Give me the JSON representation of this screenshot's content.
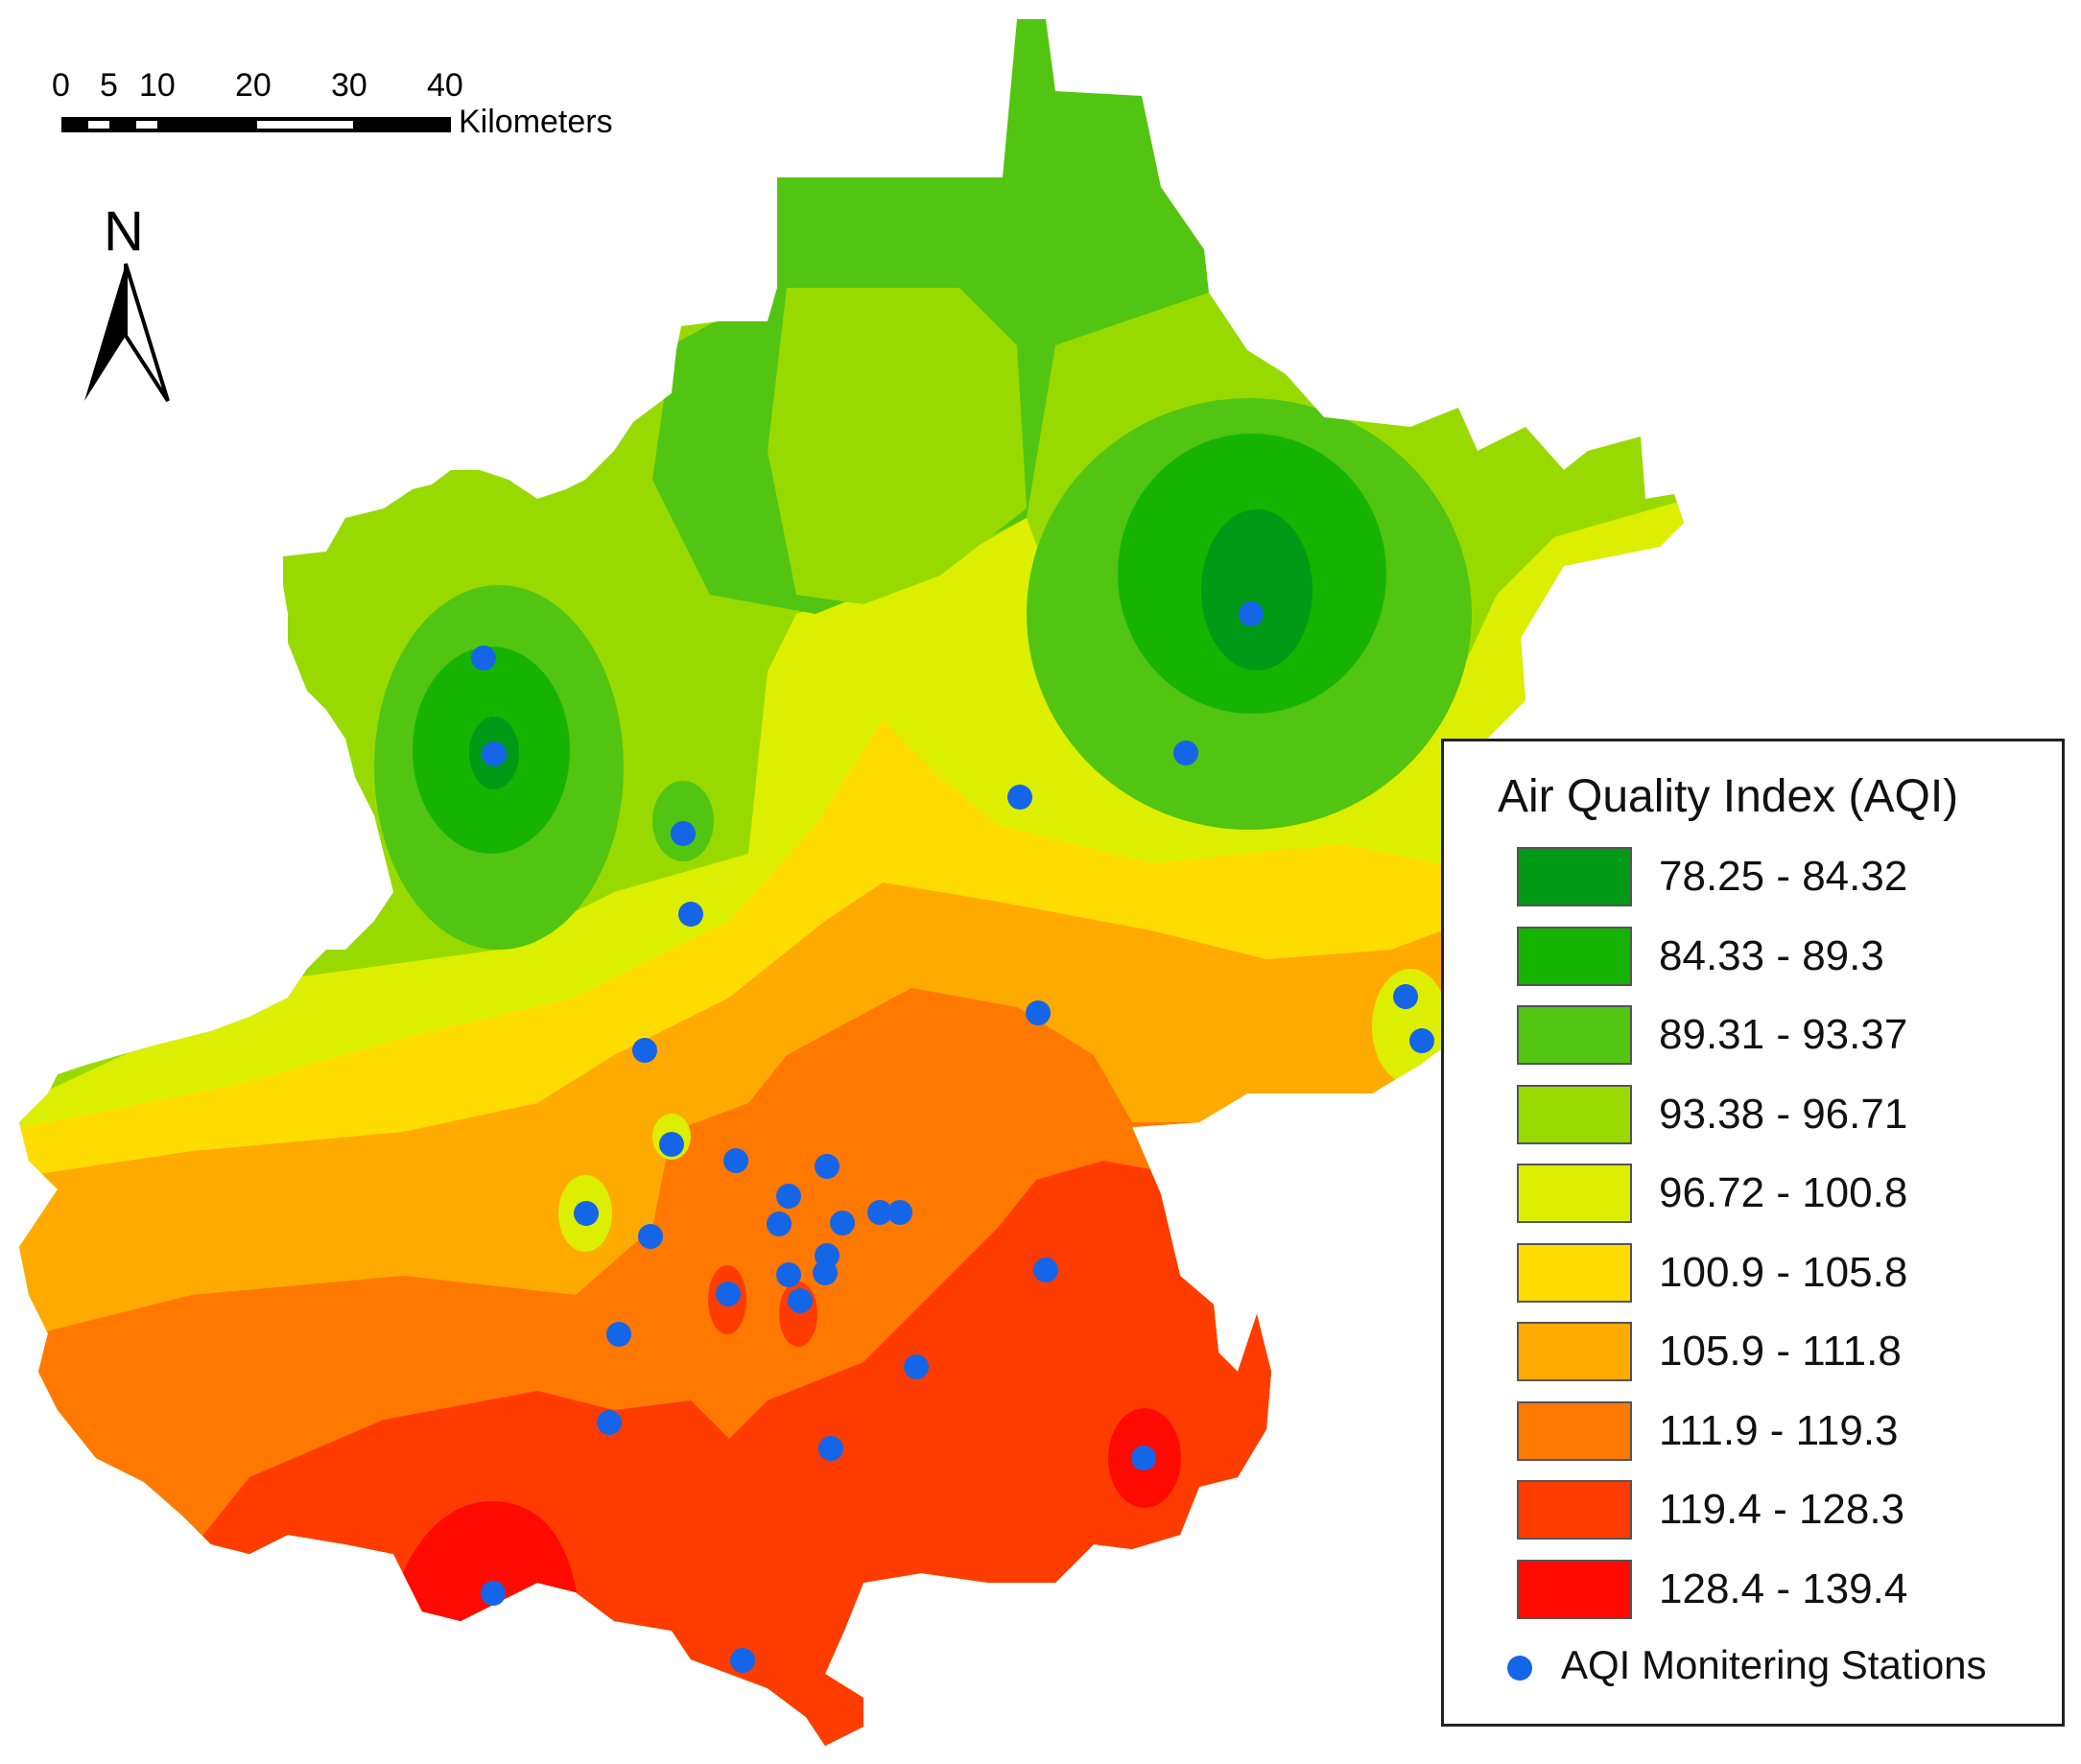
{
  "scale_bar": {
    "ticks": [
      "0",
      "5",
      "10",
      "20",
      "30",
      "40"
    ],
    "unit": "Kilometers"
  },
  "north_arrow": {
    "label": "N"
  },
  "legend": {
    "title": "Air Quality Index (AQI)",
    "classes": [
      {
        "label": "78.25 - 84.32",
        "color": "#009a16"
      },
      {
        "label": "84.33 - 89.3",
        "color": "#16b400"
      },
      {
        "label": "89.31 - 93.37",
        "color": "#52c412"
      },
      {
        "label": "93.38 - 96.71",
        "color": "#98da00"
      },
      {
        "label": "96.72 - 100.8",
        "color": "#dcef00"
      },
      {
        "label": "100.9 - 105.8",
        "color": "#ffdc00"
      },
      {
        "label": "105.9 - 111.8",
        "color": "#ffaa00"
      },
      {
        "label": "111.9 - 119.3",
        "color": "#ff7800"
      },
      {
        "label": "119.4 - 128.3",
        "color": "#ff3c00"
      },
      {
        "label": "128.4 - 139.4",
        "color": "#ff0a00"
      }
    ],
    "station_label": "AQI Monitering Stations",
    "station_color": "#1565e8"
  }
}
